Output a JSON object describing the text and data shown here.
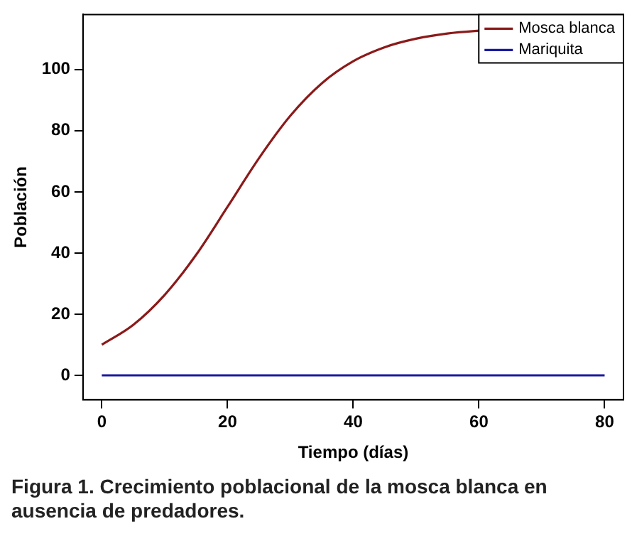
{
  "chart_data": {
    "type": "line",
    "xlabel": "Tiempo (días)",
    "ylabel": "Población",
    "x": [
      0,
      5,
      10,
      15,
      20,
      25,
      30,
      35,
      40,
      45,
      50,
      55,
      60,
      65,
      70,
      75,
      80
    ],
    "series": [
      {
        "name": "Mosca blanca",
        "color": "#8b1a1a",
        "values": [
          10,
          16.5,
          26.3,
          39.4,
          55.1,
          71,
          84.9,
          95.5,
          102.7,
          107.3,
          110.1,
          111.8,
          112.7,
          113.3,
          null,
          null,
          null
        ]
      },
      {
        "name": "Mariquita",
        "color": "#1a1aa0",
        "values": [
          0,
          0,
          0,
          0,
          0,
          0,
          0,
          0,
          0,
          0,
          0,
          0,
          0,
          0,
          0,
          0,
          0
        ]
      }
    ],
    "xlim": [
      -3,
      83
    ],
    "xticks": [
      0,
      20,
      40,
      60,
      80
    ],
    "ylim": [
      -8,
      118
    ],
    "yticks": [
      0,
      20,
      40,
      60,
      80,
      100
    ],
    "legend": "top right",
    "marker": "none",
    "line_style": "solid",
    "annotations": [
      "Figura 1. Crecimiento poblacional de la mosca blanca en ausencia de predadores."
    ]
  }
}
